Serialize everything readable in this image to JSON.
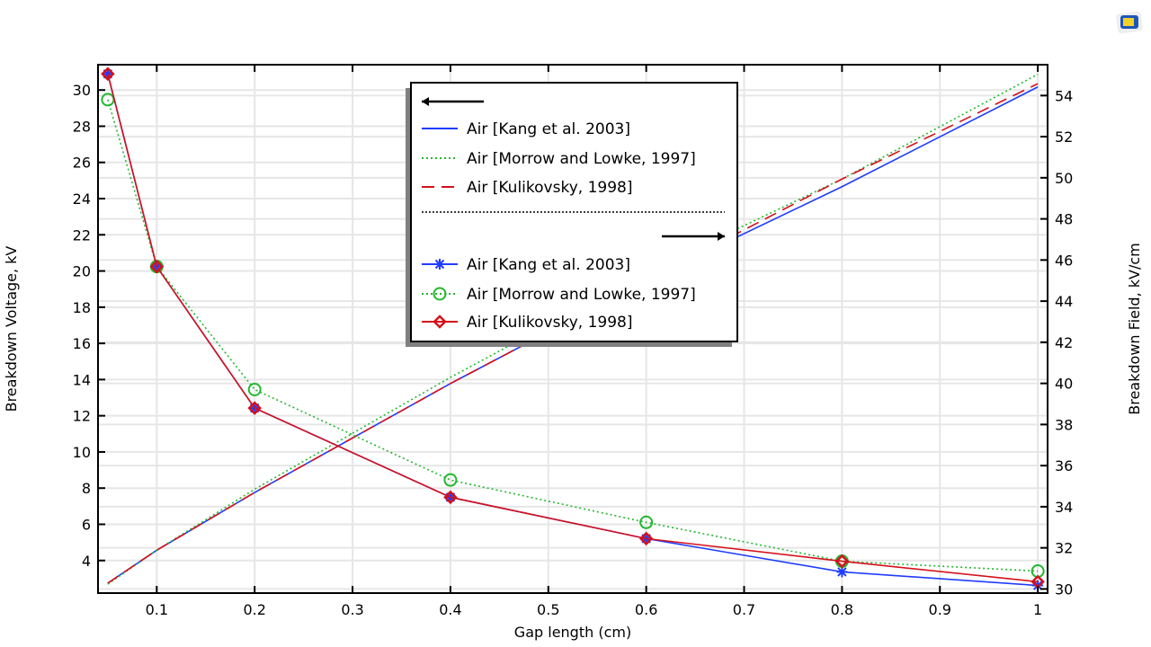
{
  "chart_data": {
    "type": "line",
    "title": "",
    "xlabel": "Gap length (cm)",
    "ylabel_left": "Breakdown Voltage, kV",
    "ylabel_right": "Breakdown Field, kV/cm",
    "xlim": [
      0.04,
      1.01
    ],
    "ylim_left": [
      2.2,
      31.4
    ],
    "ylim_right": [
      29.8,
      55.5
    ],
    "xticks": [
      "0.1",
      "0.2",
      "0.3",
      "0.4",
      "0.5",
      "0.6",
      "0.7",
      "0.8",
      "0.9",
      "1"
    ],
    "yticks_left": [
      "4",
      "6",
      "8",
      "10",
      "12",
      "14",
      "16",
      "18",
      "20",
      "22",
      "24",
      "26",
      "28",
      "30"
    ],
    "yticks_right": [
      "30",
      "32",
      "34",
      "36",
      "38",
      "40",
      "42",
      "44",
      "46",
      "48",
      "50",
      "52",
      "54"
    ],
    "grid": true,
    "legend_placement": "top-center",
    "x": [
      0.05,
      0.1,
      0.2,
      0.4,
      0.6,
      0.8,
      1.0
    ],
    "series": [
      {
        "name": "Air [Kang et al. 2003]",
        "axis": "left",
        "style": "solid",
        "marker": "none",
        "color": "#1f3cff",
        "values": [
          2.75,
          4.57,
          7.76,
          13.78,
          19.47,
          24.66,
          30.17
        ]
      },
      {
        "name": "Air [Morrow and Lowke, 1997]",
        "axis": "left",
        "style": "dotted",
        "marker": "none",
        "color": "#22b82e",
        "values": [
          2.69,
          4.57,
          7.94,
          14.12,
          19.94,
          25.08,
          30.87
        ]
      },
      {
        "name": "Air [Kulikovsky, 1998]",
        "axis": "left",
        "style": "dashed",
        "marker": "none",
        "color": "#d4111b",
        "values": [
          2.75,
          4.57,
          7.76,
          13.78,
          19.47,
          25.08,
          30.35
        ]
      },
      {
        "name": "Air [Kang et al. 2003]",
        "axis": "right",
        "style": "solid",
        "marker": "asterisk",
        "color": "#1f3cff",
        "values": [
          55.05,
          45.68,
          38.8,
          34.46,
          32.45,
          30.83,
          30.17
        ]
      },
      {
        "name": "Air [Morrow and Lowke, 1997]",
        "axis": "right",
        "style": "dotted",
        "marker": "circle",
        "color": "#22b82e",
        "values": [
          53.8,
          45.68,
          39.7,
          35.3,
          33.24,
          31.35,
          30.87
        ]
      },
      {
        "name": "Air [Kulikovsky, 1998]",
        "axis": "right",
        "style": "solid",
        "marker": "diamond",
        "color": "#d4111b",
        "values": [
          55.05,
          45.68,
          38.8,
          34.46,
          32.45,
          31.35,
          30.35
        ]
      }
    ]
  }
}
